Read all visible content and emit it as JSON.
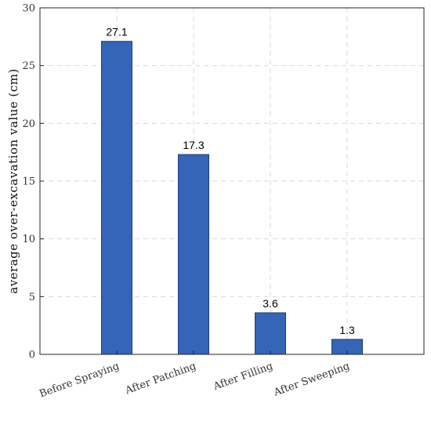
{
  "chart_data": {
    "type": "bar",
    "categories": [
      "Before Spraying",
      "After Patching",
      "After Filling",
      "After Sweeping"
    ],
    "values": [
      27.1,
      17.3,
      3.6,
      1.3
    ],
    "data_labels": [
      "27.1",
      "17.3",
      "3.6",
      "1.3"
    ],
    "title": "",
    "xlabel": "",
    "ylabel": "average over-excavation value (cm)",
    "ylim": [
      0,
      30
    ],
    "yticks": [
      0,
      5,
      10,
      15,
      20,
      25,
      30
    ],
    "ytick_labels": [
      "0",
      "5",
      "10",
      "15",
      "20",
      "25",
      "30"
    ],
    "grid": true,
    "bar_color": "#3565b6"
  }
}
